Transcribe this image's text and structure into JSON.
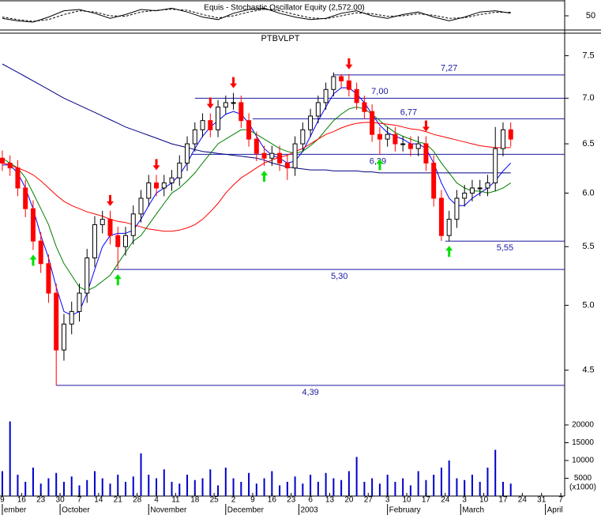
{
  "chart_data": [
    {
      "type": "line",
      "title": "Equis - Stochastic Oscillator Equity (2,572.00)",
      "x": [
        0,
        4,
        8,
        12,
        16,
        20,
        24,
        28,
        32,
        36,
        40,
        44,
        48,
        52,
        56,
        60,
        64,
        68,
        72,
        76,
        80,
        84,
        88,
        92,
        96,
        100,
        104,
        108,
        112,
        116,
        120,
        124,
        128,
        132
      ],
      "series": [
        {
          "color": "#000000",
          "values": [
            40,
            30,
            25,
            45,
            70,
            75,
            60,
            40,
            55,
            75,
            70,
            80,
            65,
            45,
            35,
            60,
            75,
            80,
            60,
            45,
            35,
            40,
            60,
            70,
            50,
            40,
            55,
            65,
            45,
            30,
            45,
            65,
            70,
            60
          ]
        },
        {
          "color": "#000000",
          "dash": true,
          "values": [
            45,
            35,
            28,
            35,
            55,
            70,
            65,
            50,
            48,
            65,
            72,
            76,
            72,
            55,
            42,
            50,
            65,
            76,
            70,
            55,
            42,
            38,
            50,
            62,
            58,
            48,
            50,
            58,
            52,
            40,
            42,
            55,
            64,
            64
          ]
        }
      ],
      "xlim": [
        -0.6,
        146
      ],
      "ylim": [
        0,
        100
      ],
      "yticks": [
        50
      ]
    },
    {
      "type": "candlestick",
      "title": "PTBVLPT",
      "x": [
        0,
        2,
        4,
        6,
        8,
        10,
        12,
        14,
        16,
        18,
        20,
        22,
        24,
        26,
        28,
        30,
        32,
        34,
        36,
        38,
        40,
        42,
        44,
        46,
        48,
        50,
        52,
        54,
        56,
        58,
        60,
        62,
        64,
        66,
        68,
        70,
        72,
        74,
        76,
        78,
        80,
        82,
        84,
        86,
        88,
        90,
        92,
        94,
        96,
        98,
        100,
        102,
        104,
        106,
        108,
        110,
        112,
        114,
        116,
        118,
        120,
        122,
        124,
        126,
        128,
        130,
        132
      ],
      "open": [
        6.35,
        6.3,
        6.25,
        6.05,
        5.85,
        5.55,
        5.35,
        5.1,
        4.65,
        4.85,
        4.95,
        5.1,
        5.4,
        5.7,
        5.75,
        5.6,
        5.5,
        5.6,
        5.8,
        5.95,
        6.1,
        6.05,
        6.1,
        6.15,
        6.3,
        6.5,
        6.65,
        6.75,
        6.65,
        6.9,
        6.95,
        6.95,
        6.75,
        6.55,
        6.4,
        6.35,
        6.4,
        6.3,
        6.25,
        6.5,
        6.65,
        6.8,
        6.95,
        7.1,
        7.25,
        7.2,
        7.1,
        6.95,
        6.85,
        6.6,
        6.55,
        6.6,
        6.5,
        6.5,
        6.45,
        6.5,
        6.3,
        5.95,
        5.6,
        5.75,
        5.95,
        6.0,
        6.05,
        6.05,
        6.1,
        6.45,
        6.65
      ],
      "high": [
        6.43,
        6.38,
        6.33,
        6.13,
        5.93,
        5.63,
        5.43,
        5.18,
        4.93,
        5.03,
        5.18,
        5.48,
        5.78,
        5.83,
        5.83,
        5.68,
        5.68,
        5.88,
        6.03,
        6.18,
        6.18,
        6.18,
        6.23,
        6.38,
        6.58,
        6.73,
        6.83,
        6.83,
        6.98,
        7.03,
        7.06,
        7.03,
        6.83,
        6.63,
        6.48,
        6.48,
        6.48,
        6.38,
        6.58,
        6.73,
        6.88,
        7.03,
        7.18,
        7.3,
        7.28,
        7.28,
        7.18,
        7.03,
        6.93,
        6.68,
        6.68,
        6.68,
        6.58,
        6.58,
        6.58,
        6.58,
        6.38,
        6.03,
        5.83,
        6.03,
        6.08,
        6.13,
        6.13,
        6.18,
        6.68,
        6.73,
        6.73
      ],
      "low": [
        6.22,
        6.17,
        5.97,
        5.77,
        5.47,
        5.27,
        5.02,
        4.39,
        4.57,
        4.77,
        4.87,
        5.02,
        5.32,
        5.62,
        5.52,
        5.3,
        5.42,
        5.52,
        5.72,
        5.87,
        5.97,
        5.97,
        6.02,
        6.07,
        6.22,
        6.42,
        6.57,
        6.57,
        6.57,
        6.82,
        6.87,
        6.67,
        6.47,
        6.32,
        6.27,
        6.27,
        6.22,
        6.13,
        6.17,
        6.42,
        6.57,
        6.72,
        6.87,
        7.02,
        7.12,
        7.02,
        6.87,
        6.77,
        6.52,
        6.39,
        6.47,
        6.42,
        6.42,
        6.37,
        6.37,
        6.22,
        5.87,
        5.55,
        5.55,
        5.67,
        5.87,
        5.92,
        5.97,
        5.97,
        6.02,
        6.37,
        6.47
      ],
      "close": [
        6.3,
        6.25,
        6.05,
        5.85,
        5.55,
        5.35,
        5.1,
        4.65,
        4.85,
        4.95,
        5.1,
        5.4,
        5.7,
        5.75,
        5.6,
        5.5,
        5.6,
        5.8,
        5.95,
        6.1,
        6.05,
        6.1,
        6.15,
        6.3,
        6.5,
        6.65,
        6.75,
        6.65,
        6.9,
        6.95,
        6.95,
        6.75,
        6.55,
        6.4,
        6.35,
        6.4,
        6.3,
        6.25,
        6.5,
        6.65,
        6.8,
        6.95,
        7.1,
        7.25,
        7.2,
        7.1,
        6.95,
        6.85,
        6.6,
        6.55,
        6.6,
        6.5,
        6.5,
        6.45,
        6.5,
        6.3,
        5.95,
        5.6,
        5.75,
        5.95,
        6.0,
        6.05,
        6.05,
        6.1,
        6.45,
        6.65,
        6.55
      ],
      "up_color": "#ffffff",
      "down_color": "#ff0000",
      "series": [
        {
          "color": "#0000ff",
          "values": [
            6.28,
            6.28,
            6.2,
            6.05,
            5.85,
            5.6,
            5.4,
            5.15,
            4.95,
            4.92,
            4.95,
            5.1,
            5.3,
            5.5,
            5.6,
            5.62,
            5.62,
            5.65,
            5.75,
            5.88,
            6.0,
            6.05,
            6.1,
            6.18,
            6.3,
            6.45,
            6.58,
            6.68,
            6.75,
            6.82,
            6.85,
            6.82,
            6.72,
            6.58,
            6.45,
            6.38,
            6.35,
            6.3,
            6.32,
            6.42,
            6.58,
            6.75,
            6.9,
            7.05,
            7.12,
            7.12,
            7.05,
            6.95,
            6.82,
            6.7,
            6.62,
            6.58,
            6.55,
            6.5,
            6.5,
            6.45,
            6.3,
            6.1,
            5.95,
            5.88,
            5.88,
            5.95,
            6.0,
            6.05,
            6.12,
            6.22,
            6.3
          ]
        },
        {
          "color": "#008000",
          "values": [
            6.35,
            6.3,
            6.25,
            6.15,
            6.0,
            5.85,
            5.7,
            5.5,
            5.35,
            5.25,
            5.15,
            5.12,
            5.15,
            5.2,
            5.25,
            5.35,
            5.45,
            5.55,
            5.6,
            5.7,
            5.8,
            5.9,
            6.0,
            6.05,
            6.12,
            6.2,
            6.3,
            6.4,
            6.5,
            6.55,
            6.6,
            6.65,
            6.65,
            6.6,
            6.55,
            6.5,
            6.45,
            6.42,
            6.4,
            6.42,
            6.48,
            6.55,
            6.65,
            6.75,
            6.82,
            6.88,
            6.9,
            6.88,
            6.82,
            6.75,
            6.68,
            6.62,
            6.58,
            6.55,
            6.52,
            6.5,
            6.42,
            6.3,
            6.2,
            6.1,
            6.05,
            6.02,
            6.02,
            6.0,
            6.02,
            6.05,
            6.1
          ]
        },
        {
          "color": "#ff0000",
          "values": [
            6.3,
            6.28,
            6.25,
            6.22,
            6.18,
            6.12,
            6.05,
            5.98,
            5.92,
            5.88,
            5.85,
            5.82,
            5.8,
            5.78,
            5.75,
            5.73,
            5.72,
            5.7,
            5.68,
            5.66,
            5.65,
            5.64,
            5.64,
            5.65,
            5.67,
            5.7,
            5.75,
            5.82,
            5.9,
            6.0,
            6.08,
            6.15,
            6.2,
            6.25,
            6.3,
            6.33,
            6.36,
            6.38,
            6.42,
            6.45,
            6.5,
            6.55,
            6.6,
            6.63,
            6.67,
            6.7,
            6.72,
            6.73,
            6.73,
            6.72,
            6.71,
            6.7,
            6.68,
            6.66,
            6.65,
            6.63,
            6.6,
            6.58,
            6.56,
            6.54,
            6.52,
            6.5,
            6.48,
            6.47,
            6.46,
            6.46,
            6.46
          ]
        },
        {
          "color": "#000080",
          "values": [
            7.4,
            7.35,
            7.3,
            7.25,
            7.2,
            7.15,
            7.1,
            7.05,
            7.0,
            6.96,
            6.92,
            6.88,
            6.84,
            6.8,
            6.76,
            6.72,
            6.68,
            6.65,
            6.62,
            6.59,
            6.56,
            6.53,
            6.5,
            6.48,
            6.46,
            6.44,
            6.42,
            6.41,
            6.4,
            6.39,
            6.38,
            6.37,
            6.36,
            6.35,
            6.33,
            6.3,
            6.28,
            6.26,
            6.25,
            6.24,
            6.23,
            6.23,
            6.23,
            6.22,
            6.22,
            6.22,
            6.22,
            6.21,
            6.21,
            6.2,
            6.2,
            6.2,
            6.2,
            6.2,
            6.2,
            6.2,
            6.2,
            6.2,
            6.2,
            6.2,
            6.2,
            6.2,
            6.2,
            6.2,
            6.2,
            6.2,
            6.2
          ]
        }
      ],
      "log_scale": true,
      "xlim": [
        -0.6,
        146
      ],
      "ylim": [
        4.24,
        7.78
      ],
      "yticks": [
        4.5,
        {
          "value": 5,
          "label": "5.0"
        },
        5.5,
        {
          "value": 6,
          "label": "6.0"
        },
        6.5,
        {
          "value": 7,
          "label": "7.0"
        },
        7.5
      ],
      "levels": [
        {
          "value": 7.27,
          "label": "7,27",
          "from": 86
        },
        {
          "value": 7.0,
          "label": "7,00",
          "from": 50
        },
        {
          "value": 6.77,
          "label": "6,77",
          "from": 65
        },
        {
          "value": 6.39,
          "label": "6,39",
          "from": 49
        },
        {
          "value": 5.55,
          "label": "5,55",
          "from": 115
        },
        {
          "value": 5.3,
          "label": "5,30",
          "from": 29
        },
        {
          "value": 4.39,
          "label": "4,39",
          "from": 14
        }
      ],
      "level_color": "#1a1aa0",
      "sell_signals": [
        28,
        40,
        54,
        60,
        90,
        110
      ],
      "sell_color": "#ff0000",
      "buy_signals": [
        8,
        30,
        68,
        98,
        116
      ],
      "buy_color": "#00e000"
    },
    {
      "type": "bar",
      "x": [
        0,
        2,
        4,
        6,
        8,
        10,
        12,
        14,
        16,
        18,
        20,
        22,
        24,
        26,
        28,
        30,
        32,
        34,
        36,
        38,
        40,
        42,
        44,
        46,
        48,
        50,
        52,
        54,
        56,
        58,
        60,
        62,
        64,
        66,
        68,
        70,
        72,
        74,
        76,
        78,
        80,
        82,
        84,
        86,
        88,
        90,
        92,
        94,
        96,
        98,
        100,
        102,
        104,
        106,
        108,
        110,
        112,
        114,
        116,
        118,
        120,
        122,
        124,
        126,
        128,
        130,
        132
      ],
      "values": [
        7000,
        21000,
        6000,
        4000,
        8000,
        3500,
        5000,
        6500,
        4000,
        5500,
        3000,
        4500,
        7000,
        5000,
        3500,
        6000,
        4000,
        5500,
        12000,
        6000,
        5000,
        7500,
        4000,
        3500,
        6000,
        4500,
        5000,
        7500,
        3000,
        8000,
        5000,
        4000,
        6500,
        3500,
        5000,
        7000,
        3000,
        4000,
        5500,
        3500,
        6000,
        4000,
        6500,
        5000,
        4500,
        7000,
        11000,
        4000,
        5000,
        3500,
        6000,
        4000,
        5000,
        3000,
        7000,
        4500,
        6000,
        8000,
        10000,
        5000,
        4500,
        6000,
        4000,
        8000,
        13000,
        4000,
        3500
      ],
      "color": "#0000cc",
      "xlim": [
        -0.6,
        146
      ],
      "ylim": [
        0,
        22000
      ],
      "yticks": [
        5000,
        10000,
        15000,
        20000
      ],
      "unit_label": "(x1000)",
      "xticks": [
        {
          "value": 0,
          "label": "9"
        },
        {
          "value": 5,
          "label": "16"
        },
        {
          "value": 10,
          "label": "23"
        },
        {
          "value": 15,
          "label": "30"
        },
        {
          "value": 20,
          "label": "7"
        },
        {
          "value": 25,
          "label": "14"
        },
        {
          "value": 30,
          "label": "21"
        },
        {
          "value": 35,
          "label": "28"
        },
        {
          "value": 40,
          "label": "4"
        },
        {
          "value": 45,
          "label": "11"
        },
        {
          "value": 50,
          "label": "18"
        },
        {
          "value": 55,
          "label": "25"
        },
        {
          "value": 60,
          "label": "2"
        },
        {
          "value": 65,
          "label": "9"
        },
        {
          "value": 70,
          "label": "16"
        },
        {
          "value": 75,
          "label": "23"
        },
        {
          "value": 80,
          "label": "6"
        },
        {
          "value": 85,
          "label": "13"
        },
        {
          "value": 90,
          "label": "20"
        },
        {
          "value": 95,
          "label": "27"
        },
        {
          "value": 100,
          "label": "3"
        },
        {
          "value": 105,
          "label": "10"
        },
        {
          "value": 110,
          "label": "17"
        },
        {
          "value": 115,
          "label": "24"
        },
        {
          "value": 120,
          "label": "3"
        },
        {
          "value": 125,
          "label": "10"
        },
        {
          "value": 130,
          "label": "17"
        },
        {
          "value": 135,
          "label": "24"
        },
        {
          "value": 140,
          "label": "31"
        },
        {
          "value": 145,
          "label": "7"
        }
      ],
      "months": [
        {
          "value": 0,
          "label": "ember"
        },
        {
          "value": 15,
          "label": "October"
        },
        {
          "value": 38,
          "label": "November"
        },
        {
          "value": 58,
          "label": "December"
        },
        {
          "value": 77,
          "label": "2003"
        },
        {
          "value": 100,
          "label": "February"
        },
        {
          "value": 119,
          "label": "March"
        },
        {
          "value": 141,
          "label": "April"
        }
      ]
    }
  ]
}
